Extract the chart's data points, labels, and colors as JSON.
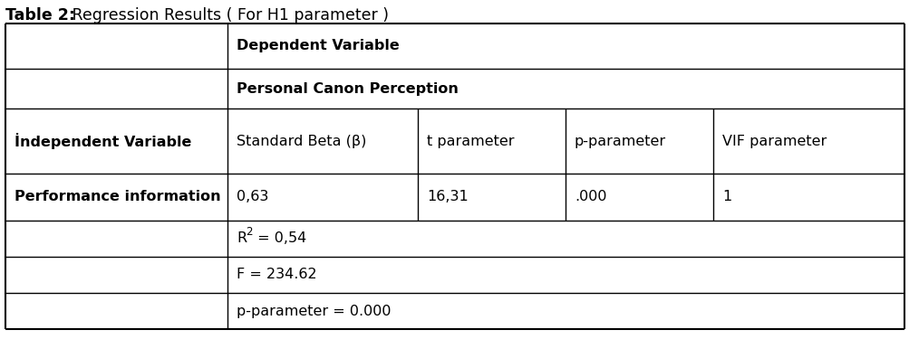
{
  "title_bold": "Table 2:",
  "title_regular": " Regression Results ( For H1 parameter )",
  "row_header1": "Dependent Variable",
  "row_header2": "Personal Canon Perception",
  "col_header_left": "İndependent Variable",
  "col_header2": "Standard Beta (β)",
  "col_header3": "t parameter",
  "col_header4": "p-parameter",
  "col_header5": "VIF parameter",
  "row1_col1": "Performance information",
  "row1_col2": "0,63",
  "row1_col3": "16,31",
  "row1_col4": ".000",
  "row1_col5": "1",
  "row3_span": "F = 234.62",
  "row4_span": "p-parameter = 0.000",
  "bg_color": "#ffffff",
  "text_color": "#000000",
  "line_color": "#000000",
  "font_size": 11.5,
  "title_font_size": 12.5
}
